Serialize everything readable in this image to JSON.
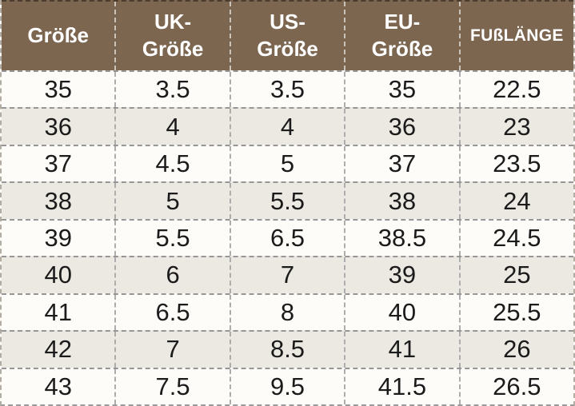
{
  "colors": {
    "header_bg": "#7c6650",
    "header_text": "#ffffff",
    "header_divider": "#cac3b9",
    "row_bg": "#fdfcf9",
    "row_alt_bg": "#ece8e2",
    "border_horizontal": "#969696",
    "border_vertical": "#adadad",
    "cell_text": "#1b1b1b"
  },
  "chart_data": {
    "type": "table",
    "columns": [
      "Größe",
      "UK-Größe",
      "US-Größe",
      "EU-Größe",
      "FUßLÄNGE"
    ],
    "header_display": [
      "Größe",
      "UK-\nGröße",
      "US-\nGröße",
      "EU-\nGröße",
      "FUßLÄNGE"
    ],
    "rows": [
      [
        "35",
        "3.5",
        "3.5",
        "35",
        "22.5"
      ],
      [
        "36",
        "4",
        "4",
        "36",
        "23"
      ],
      [
        "37",
        "4.5",
        "5",
        "37",
        "23.5"
      ],
      [
        "38",
        "5",
        "5.5",
        "38",
        "24"
      ],
      [
        "39",
        "5.5",
        "6.5",
        "38.5",
        "24.5"
      ],
      [
        "40",
        "6",
        "7",
        "39",
        "25"
      ],
      [
        "41",
        "6.5",
        "8",
        "40",
        "25.5"
      ],
      [
        "42",
        "7",
        "8.5",
        "41",
        "26"
      ],
      [
        "43",
        "7.5",
        "9.5",
        "41.5",
        "26.5"
      ]
    ]
  }
}
